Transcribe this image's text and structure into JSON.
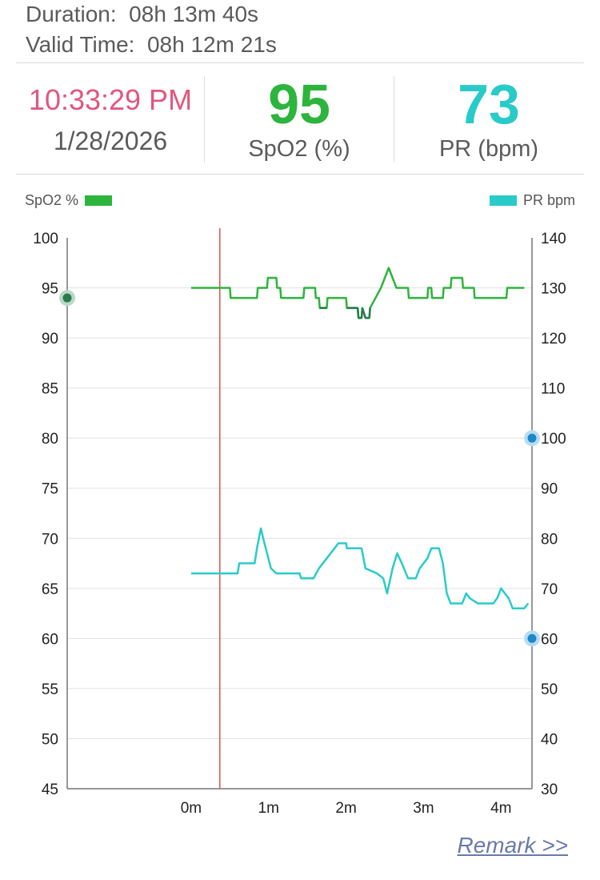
{
  "header": {
    "duration": "Duration:  08h 13m 40s",
    "valid_time": "Valid Time:  08h 12m 21s"
  },
  "stats": {
    "time": "10:33:29 PM",
    "date": "1/28/2026",
    "spo2_value": "95",
    "spo2_label": "SpO2 (%)",
    "pr_value": "73",
    "pr_label": "PR (bpm)"
  },
  "legend": {
    "spo2": "SpO2 %",
    "pr": "PR bpm"
  },
  "colors": {
    "spo2": "#2db43c",
    "spo2_dark": "#2a7a4e",
    "pr": "#29cbc8",
    "time": "#e0577e",
    "cursor": "#d9534f",
    "marker": "#1a88c9"
  },
  "chart_data": {
    "type": "line",
    "x_ticks": [
      "0m",
      "1m",
      "2m",
      "3m",
      "4m"
    ],
    "x_tick_minutes": [
      0,
      1,
      2,
      3,
      4
    ],
    "xlim_minutes": [
      -1.6,
      4.4
    ],
    "cursor_minutes": 0.37,
    "left_axis": {
      "ylim": [
        45,
        100
      ],
      "ticks": [
        100,
        95,
        90,
        85,
        80,
        75,
        70,
        65,
        60,
        55,
        50,
        45
      ]
    },
    "right_axis": {
      "ylim": [
        30,
        140
      ],
      "ticks": [
        140,
        130,
        120,
        110,
        100,
        90,
        80,
        70,
        60,
        50,
        40,
        30
      ]
    },
    "left_marker_value": 94,
    "right_marker_values": [
      100,
      60
    ],
    "series": [
      {
        "name": "SpO2 %",
        "axis": "left",
        "points": [
          [
            0,
            95
          ],
          [
            0.5,
            95
          ],
          [
            0.51,
            94
          ],
          [
            0.85,
            94
          ],
          [
            0.86,
            95
          ],
          [
            0.98,
            95
          ],
          [
            0.99,
            96
          ],
          [
            1.1,
            96
          ],
          [
            1.11,
            95
          ],
          [
            1.15,
            95
          ],
          [
            1.16,
            94
          ],
          [
            1.45,
            94
          ],
          [
            1.46,
            95
          ],
          [
            1.6,
            95
          ],
          [
            1.61,
            94
          ],
          [
            1.65,
            94
          ],
          [
            1.66,
            93
          ],
          [
            1.75,
            93
          ],
          [
            1.76,
            94
          ],
          [
            2.0,
            94
          ],
          [
            2.01,
            93
          ],
          [
            2.15,
            93
          ],
          [
            2.16,
            92
          ],
          [
            2.2,
            92
          ],
          [
            2.21,
            93
          ],
          [
            2.25,
            92
          ],
          [
            2.3,
            92
          ],
          [
            2.31,
            93
          ],
          [
            2.38,
            94
          ],
          [
            2.45,
            95
          ],
          [
            2.5,
            96
          ],
          [
            2.55,
            97
          ],
          [
            2.6,
            96
          ],
          [
            2.65,
            95
          ],
          [
            2.8,
            95
          ],
          [
            2.81,
            94
          ],
          [
            3.05,
            94
          ],
          [
            3.06,
            95
          ],
          [
            3.1,
            95
          ],
          [
            3.11,
            94
          ],
          [
            3.25,
            94
          ],
          [
            3.26,
            95
          ],
          [
            3.35,
            95
          ],
          [
            3.36,
            96
          ],
          [
            3.5,
            96
          ],
          [
            3.51,
            95
          ],
          [
            3.65,
            95
          ],
          [
            3.66,
            94
          ],
          [
            4.07,
            94
          ],
          [
            4.08,
            95
          ],
          [
            4.3,
            95
          ]
        ]
      },
      {
        "name": "PR bpm",
        "axis": "right",
        "points": [
          [
            0,
            73
          ],
          [
            0.6,
            73
          ],
          [
            0.62,
            75
          ],
          [
            0.82,
            75
          ],
          [
            0.85,
            78
          ],
          [
            0.9,
            82
          ],
          [
            0.93,
            80
          ],
          [
            0.98,
            77
          ],
          [
            1.03,
            74
          ],
          [
            1.1,
            73
          ],
          [
            1.4,
            73
          ],
          [
            1.42,
            72
          ],
          [
            1.58,
            72
          ],
          [
            1.65,
            74
          ],
          [
            1.75,
            76
          ],
          [
            1.85,
            78
          ],
          [
            1.9,
            79
          ],
          [
            2.0,
            79
          ],
          [
            2.01,
            78
          ],
          [
            2.2,
            78
          ],
          [
            2.25,
            74
          ],
          [
            2.4,
            73
          ],
          [
            2.48,
            72
          ],
          [
            2.53,
            69
          ],
          [
            2.6,
            74
          ],
          [
            2.66,
            77
          ],
          [
            2.72,
            75
          ],
          [
            2.8,
            72
          ],
          [
            2.9,
            72
          ],
          [
            2.95,
            74
          ],
          [
            3.05,
            76
          ],
          [
            3.1,
            78
          ],
          [
            3.2,
            78
          ],
          [
            3.25,
            75
          ],
          [
            3.3,
            69
          ],
          [
            3.35,
            67
          ],
          [
            3.5,
            67
          ],
          [
            3.55,
            69
          ],
          [
            3.6,
            68
          ],
          [
            3.7,
            67
          ],
          [
            3.9,
            67
          ],
          [
            3.95,
            68
          ],
          [
            4.0,
            70
          ],
          [
            4.05,
            69
          ],
          [
            4.1,
            68
          ],
          [
            4.15,
            66
          ],
          [
            4.3,
            66
          ],
          [
            4.35,
            67
          ]
        ]
      }
    ]
  },
  "footer": {
    "remark": "Remark >>"
  }
}
